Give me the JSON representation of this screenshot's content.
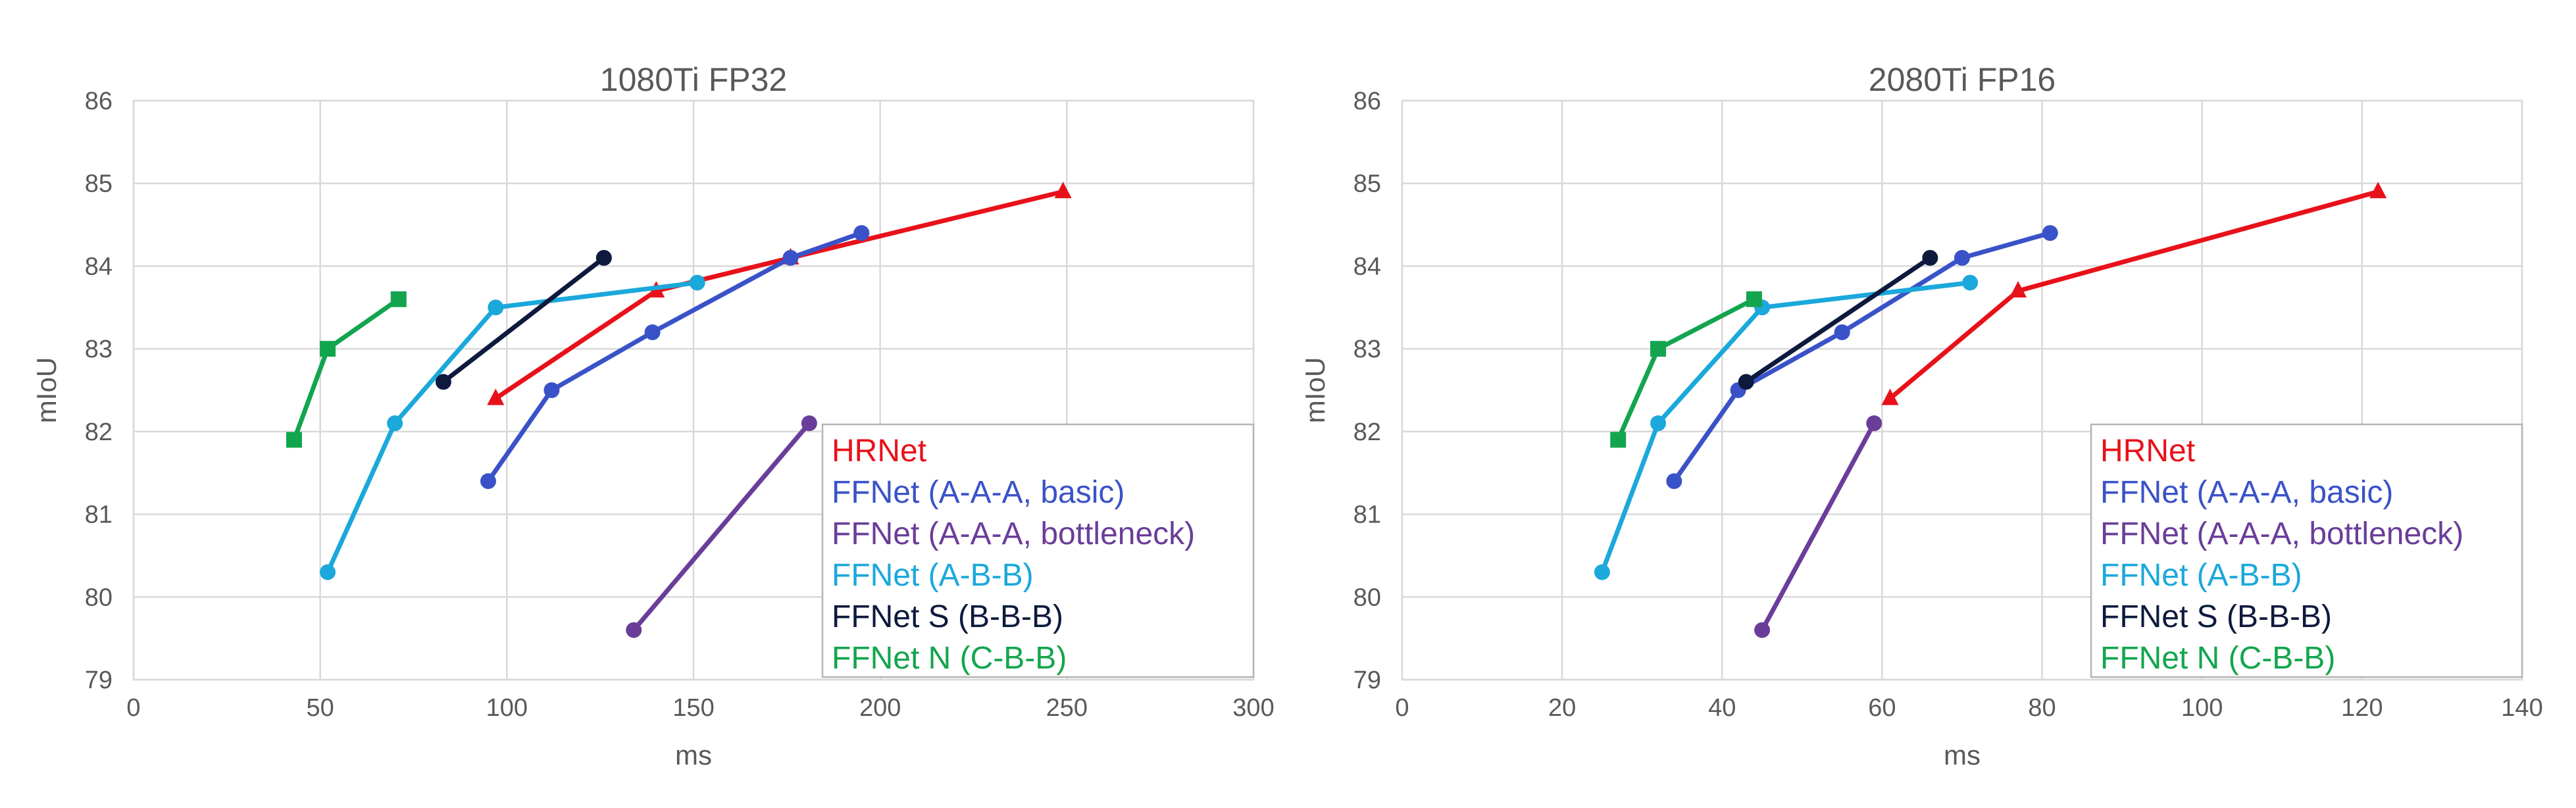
{
  "chart_data": [
    {
      "type": "line",
      "title": "1080Ti FP32",
      "xlabel": "ms",
      "ylabel": "mIoU",
      "xlim": [
        0,
        300
      ],
      "ylim": [
        79,
        86
      ],
      "xticks": [
        0,
        50,
        100,
        150,
        200,
        250,
        300
      ],
      "yticks": [
        79,
        80,
        81,
        82,
        83,
        84,
        85,
        86
      ],
      "grid": true,
      "legend_position": "bottom-right",
      "series": [
        {
          "name": "HRNet",
          "color": "#e8111a",
          "marker": "triangle",
          "x": [
            97,
            140,
            176,
            249
          ],
          "y": [
            82.4,
            83.7,
            84.1,
            84.9
          ]
        },
        {
          "name": "FFNet (A-A-A, basic)",
          "color": "#3a52c8",
          "marker": "circle",
          "x": [
            95,
            112,
            139,
            176,
            195
          ],
          "y": [
            81.4,
            82.5,
            83.2,
            84.1,
            84.4
          ]
        },
        {
          "name": "FFNet (A-A-A, bottleneck)",
          "color": "#6a3d9a",
          "marker": "circle",
          "x": [
            134,
            181
          ],
          "y": [
            79.6,
            82.1
          ]
        },
        {
          "name": "FFNet (A-B-B)",
          "color": "#1ba8db",
          "marker": "circle",
          "x": [
            52,
            70,
            97,
            151
          ],
          "y": [
            80.3,
            82.1,
            83.5,
            83.8
          ]
        },
        {
          "name": "FFNet S (B-B-B)",
          "color": "#0d1a3d",
          "marker": "circle",
          "x": [
            83,
            126
          ],
          "y": [
            82.6,
            84.1
          ]
        },
        {
          "name": "FFNet N (C-B-B)",
          "color": "#13a54e",
          "marker": "square",
          "x": [
            43,
            52,
            71
          ],
          "y": [
            81.9,
            83.0,
            83.6
          ]
        }
      ]
    },
    {
      "type": "line",
      "title": "2080Ti FP16",
      "xlabel": "ms",
      "ylabel": "mIoU",
      "xlim": [
        0,
        140
      ],
      "ylim": [
        79,
        86
      ],
      "xticks": [
        0,
        20,
        40,
        60,
        80,
        100,
        120,
        140
      ],
      "yticks": [
        79,
        80,
        81,
        82,
        83,
        84,
        85,
        86
      ],
      "grid": true,
      "legend_position": "bottom-right",
      "series": [
        {
          "name": "HRNet",
          "color": "#e8111a",
          "marker": "triangle",
          "x": [
            61,
            77,
            122
          ],
          "y": [
            82.4,
            83.7,
            84.9
          ]
        },
        {
          "name": "FFNet (A-A-A, basic)",
          "color": "#3a52c8",
          "marker": "circle",
          "x": [
            34,
            42,
            55,
            70,
            81
          ],
          "y": [
            81.4,
            82.5,
            83.2,
            84.1,
            84.4
          ]
        },
        {
          "name": "FFNet (A-A-A, bottleneck)",
          "color": "#6a3d9a",
          "marker": "circle",
          "x": [
            45,
            59
          ],
          "y": [
            79.6,
            82.1
          ]
        },
        {
          "name": "FFNet (A-B-B)",
          "color": "#1ba8db",
          "marker": "circle",
          "x": [
            25,
            32,
            45,
            71
          ],
          "y": [
            80.3,
            82.1,
            83.5,
            83.8
          ]
        },
        {
          "name": "FFNet S (B-B-B)",
          "color": "#0d1a3d",
          "marker": "circle",
          "x": [
            43,
            66
          ],
          "y": [
            82.6,
            84.1
          ]
        },
        {
          "name": "FFNet N (C-B-B)",
          "color": "#13a54e",
          "marker": "square",
          "x": [
            27,
            32,
            44
          ],
          "y": [
            81.9,
            83.0,
            83.6
          ]
        }
      ]
    }
  ]
}
